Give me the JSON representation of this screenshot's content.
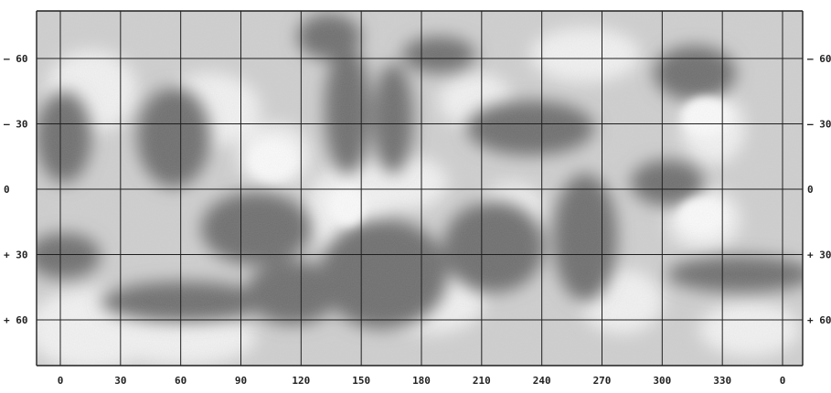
{
  "map": {
    "latitude_labels": [
      {
        "value": "-60",
        "text_left": "– 60",
        "text_right": "– 60"
      },
      {
        "value": "-30",
        "text_left": "– 30",
        "text_right": "– 30"
      },
      {
        "value": "0",
        "text_left": "0",
        "text_right": "0"
      },
      {
        "value": "30",
        "text_left": "+ 30",
        "text_right": "+ 30"
      },
      {
        "value": "60",
        "text_left": "+ 60",
        "text_right": "+ 60"
      }
    ],
    "longitude_labels": [
      "0",
      "30",
      "60",
      "90",
      "120",
      "150",
      "180",
      "210",
      "240",
      "270",
      "300",
      "330",
      "0"
    ],
    "colors": {
      "background": "#ffffff",
      "map_base": "#cfcfcf",
      "grid": "#1f1f1f",
      "dark_marking": "#6e6e6e",
      "light_area": "#f2f2f2"
    }
  }
}
